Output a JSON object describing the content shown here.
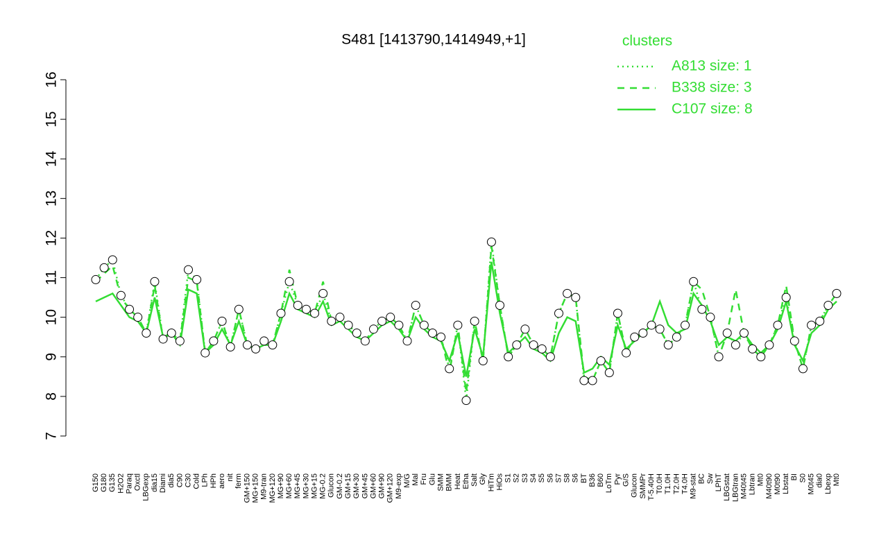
{
  "chart_data": {
    "type": "line",
    "title": "S481 [1413790,1414949,+1]",
    "legend_title": "clusters",
    "legend_position": "top-right",
    "categories": [
      "G150",
      "G180",
      "G135",
      "H2O2",
      "Paraq",
      "Oxctl",
      "LBGexp",
      "dia15",
      "Diami",
      "dia5",
      "C90",
      "C30",
      "Cold",
      "LPh",
      "HPh",
      "aero",
      "nit",
      "ferm",
      "GM+150",
      "MG+150",
      "M9-tran",
      "MG+120",
      "MG+90",
      "MG+60",
      "MG+45",
      "MG+30",
      "MG+15",
      "MG-0.2",
      "Glucon",
      "GM-0.2",
      "GM+15",
      "GM+30",
      "GM+45",
      "GM+60",
      "GM+90",
      "GM+120",
      "M9-exp",
      "M/G",
      "Mal",
      "Fru",
      "Glu",
      "SMM",
      "BMM",
      "Heat",
      "Etha",
      "Salt",
      "Gly",
      "HiTm",
      "HiOs",
      "S1",
      "S2",
      "S3",
      "S4",
      "S5",
      "S6",
      "S7",
      "S8",
      "S6",
      "BT",
      "B36",
      "B60",
      "LoTm",
      "Pyr",
      "G/S",
      "Glucon",
      "SMMPr",
      "T-5.40H",
      "T0.0H",
      "T1.0H",
      "T2.0H",
      "T4.0H",
      "M9-stat",
      "BC",
      "Sw",
      "LPhT",
      "LBGstat",
      "LBGtran",
      "M40t45",
      "Lbtran",
      "Mt0",
      "M40t90",
      "M0t90",
      "Lbstat",
      "BI",
      "S0",
      "M0t45",
      "dia0",
      "Lbexp",
      "Mt0"
    ],
    "points": {
      "color": "#ffffff",
      "stroke": "#000000",
      "values": [
        10.95,
        11.25,
        11.45,
        10.55,
        10.2,
        10.0,
        9.6,
        10.9,
        9.45,
        9.6,
        9.4,
        11.2,
        10.95,
        9.1,
        9.4,
        9.9,
        9.25,
        10.2,
        9.3,
        9.2,
        9.4,
        9.3,
        10.1,
        10.9,
        10.3,
        10.2,
        10.1,
        10.6,
        9.9,
        10.0,
        9.8,
        9.6,
        9.4,
        9.7,
        9.9,
        10.0,
        9.8,
        9.4,
        10.3,
        9.8,
        9.6,
        9.5,
        8.7,
        9.8,
        7.9,
        9.9,
        8.9,
        11.9,
        10.3,
        9.0,
        9.3,
        9.7,
        9.3,
        9.2,
        9.0,
        10.1,
        10.6,
        10.5,
        8.4,
        8.4,
        8.9,
        8.6,
        10.1,
        9.1,
        9.5,
        9.6,
        9.8,
        9.7,
        9.3,
        9.5,
        9.8,
        10.9,
        10.2,
        10.0,
        9.0,
        9.6,
        9.3,
        9.6,
        9.2,
        9.0,
        9.3,
        9.8,
        10.5,
        9.4,
        8.7,
        9.8,
        9.9,
        10.3,
        10.6
      ]
    },
    "series": [
      {
        "name": "A813 size: 1",
        "color": "#33dd33",
        "dash": "dotted",
        "values": [
          10.95,
          11.25,
          11.45,
          10.55,
          10.2,
          10.0,
          9.6,
          10.9,
          9.45,
          9.6,
          9.4,
          11.2,
          10.95,
          9.1,
          9.4,
          9.9,
          9.25,
          10.2,
          9.3,
          9.2,
          9.4,
          9.3,
          10.1,
          10.9,
          10.3,
          10.2,
          10.1,
          10.6,
          9.9,
          10.0,
          9.8,
          9.6,
          9.4,
          9.7,
          9.9,
          10.0,
          9.8,
          9.4,
          10.3,
          9.8,
          9.6,
          9.5,
          8.7,
          9.8,
          7.9,
          9.9,
          8.9,
          11.9,
          10.3,
          9.0,
          9.3,
          9.7,
          9.3,
          9.2,
          9.0,
          10.1,
          10.6,
          10.5,
          8.4,
          8.4,
          8.9,
          8.6,
          10.1,
          9.1,
          9.5,
          9.6,
          9.8,
          9.7,
          9.3,
          9.5,
          9.8,
          10.9,
          10.2,
          10.0,
          9.0,
          9.6,
          9.3,
          9.6,
          9.2,
          9.0,
          9.3,
          9.8,
          10.5,
          9.4,
          8.7,
          9.8,
          9.9,
          10.3,
          10.6
        ]
      },
      {
        "name": "B338 size: 3",
        "color": "#33dd33",
        "dash": "dashed",
        "values": [
          10.9,
          11.1,
          11.3,
          10.5,
          10.2,
          10.0,
          9.6,
          10.8,
          9.45,
          9.6,
          9.4,
          11.0,
          10.9,
          9.1,
          9.4,
          9.9,
          9.25,
          10.2,
          9.3,
          9.2,
          9.4,
          9.3,
          10.1,
          11.2,
          10.3,
          10.2,
          10.1,
          10.9,
          9.9,
          10.0,
          9.8,
          9.6,
          9.4,
          9.7,
          9.9,
          10.0,
          9.8,
          9.4,
          10.3,
          9.8,
          9.6,
          9.5,
          8.6,
          9.8,
          8.1,
          9.9,
          8.9,
          11.8,
          10.3,
          9.0,
          9.3,
          9.7,
          9.3,
          9.2,
          9.0,
          10.1,
          10.6,
          10.5,
          8.5,
          8.4,
          8.9,
          8.6,
          10.1,
          9.1,
          9.5,
          9.6,
          9.8,
          9.7,
          9.3,
          9.5,
          9.8,
          10.9,
          10.7,
          10.0,
          9.0,
          9.6,
          10.7,
          9.6,
          9.2,
          9.0,
          9.3,
          9.8,
          10.8,
          9.4,
          8.7,
          9.8,
          9.9,
          10.3,
          10.6
        ]
      },
      {
        "name": "C107 size: 8",
        "color": "#33dd33",
        "dash": "solid",
        "values": [
          10.4,
          10.5,
          10.6,
          10.3,
          10.0,
          9.9,
          9.6,
          10.5,
          9.5,
          9.6,
          9.3,
          10.7,
          10.6,
          9.1,
          9.3,
          9.7,
          9.3,
          9.9,
          9.3,
          9.2,
          9.3,
          9.3,
          9.9,
          10.6,
          10.2,
          10.1,
          10.0,
          10.4,
          9.8,
          9.9,
          9.7,
          9.5,
          9.4,
          9.6,
          9.8,
          9.9,
          9.7,
          9.4,
          10.0,
          9.7,
          9.5,
          9.4,
          8.9,
          9.6,
          8.5,
          9.7,
          9.0,
          11.4,
          10.1,
          9.1,
          9.3,
          9.5,
          9.2,
          9.1,
          8.9,
          9.6,
          10.0,
          9.9,
          8.6,
          8.7,
          9.0,
          8.8,
          9.8,
          9.2,
          9.4,
          9.6,
          9.8,
          10.4,
          9.8,
          9.6,
          9.7,
          10.6,
          10.3,
          9.9,
          9.3,
          9.5,
          9.4,
          9.6,
          9.3,
          9.1,
          9.3,
          9.7,
          10.4,
          9.3,
          8.9,
          9.6,
          9.8,
          10.2,
          10.4
        ]
      }
    ],
    "ylim": [
      7,
      16
    ],
    "yticks": [
      7,
      8,
      9,
      10,
      11,
      12,
      13,
      14,
      15,
      16
    ]
  }
}
